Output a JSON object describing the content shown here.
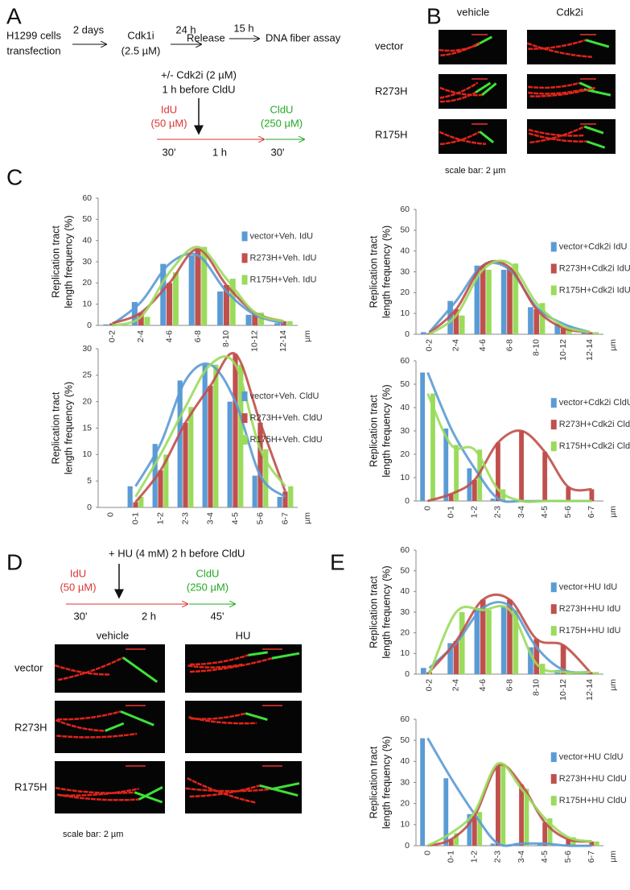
{
  "panel_labels": [
    "A",
    "B",
    "C",
    "D",
    "E"
  ],
  "panel_a": {
    "start": [
      "H1299 cells",
      "transfection"
    ],
    "arrow1": "2 days",
    "cdk1i": [
      "Cdk1i",
      "(2.5 µM)"
    ],
    "arrow2": "24 h",
    "release": "Release",
    "arrow3": "15 h",
    "assay": "DNA fiber assay",
    "treatment": [
      "+/- Cdk2i (2 µM)",
      "1 h before CldU"
    ],
    "idu": [
      "IdU",
      "(50 µM)"
    ],
    "cldu": [
      "CldU",
      "(250 µM)"
    ],
    "times": [
      "30'",
      "1 h",
      "30'"
    ]
  },
  "panel_b": {
    "columns": [
      "vehicle",
      "Cdk2i"
    ],
    "rows": [
      "vector",
      "R273H",
      "R175H"
    ],
    "scale": "scale bar: 2 µm"
  },
  "panel_d": {
    "treatment": "+ HU (4 mM) 2 h before CldU",
    "idu": [
      "IdU",
      "(50 µM)"
    ],
    "cldu": [
      "CldU",
      "(250 µM)"
    ],
    "times": [
      "30'",
      "2 h",
      "45'"
    ],
    "columns": [
      "vehicle",
      "HU"
    ],
    "rows": [
      "vector",
      "R273H",
      "R175H"
    ],
    "scale": "scale bar: 2 µm"
  },
  "chart_data": [
    {
      "type": "bar",
      "ylabel": [
        "Replication tract",
        "length frequency (%)"
      ],
      "unit": "µm",
      "fit_lines": true,
      "categories": [
        "0-2",
        "2-4",
        "4-6",
        "6-8",
        "8-10",
        "10-12",
        "12-14"
      ],
      "ylim": [
        0,
        60
      ],
      "yticks": [
        0,
        10,
        20,
        30,
        40,
        50,
        60
      ],
      "series": [
        {
          "name": "vector+Veh. IdU",
          "color": "#5b9bd5",
          "values": [
            0.5,
            11,
            29,
            33,
            16,
            5,
            1
          ]
        },
        {
          "name": "R273H+Veh. IdU",
          "color": "#c0504d",
          "values": [
            1,
            6,
            20,
            36,
            19,
            6,
            2
          ]
        },
        {
          "name": "R175H+Veh. IdU",
          "color": "#9bdb5b",
          "values": [
            0,
            4,
            25,
            37,
            22,
            6,
            2
          ]
        }
      ]
    },
    {
      "type": "bar",
      "ylabel": [
        "Replication tract",
        "length frequency (%)"
      ],
      "unit": "µm",
      "fit_lines": true,
      "categories": [
        "0-2",
        "2-4",
        "4-6",
        "6-8",
        "8-10",
        "10-12",
        "12-14"
      ],
      "ylim": [
        0,
        60
      ],
      "yticks": [
        0,
        10,
        20,
        30,
        40,
        50,
        60
      ],
      "series": [
        {
          "name": "vector+Cdk2i IdU",
          "color": "#5b9bd5",
          "values": [
            1,
            16,
            33,
            31,
            13,
            5,
            1
          ]
        },
        {
          "name": "R273H+Cdk2i IdU",
          "color": "#c0504d",
          "values": [
            0.5,
            12,
            33,
            32,
            12,
            3,
            1
          ]
        },
        {
          "name": "R175H+Cdk2i IdU",
          "color": "#9bdb5b",
          "values": [
            0,
            9,
            31,
            34,
            15,
            4,
            1
          ]
        }
      ]
    },
    {
      "type": "bar",
      "ylabel": [
        "Replication tract",
        "length frequency (%)"
      ],
      "unit": "µm",
      "fit_lines": true,
      "categories": [
        "0",
        "0-1",
        "1-2",
        "2-3",
        "3-4",
        "4-5",
        "5-6",
        "6-7"
      ],
      "ylim": [
        0,
        30
      ],
      "yticks": [
        0,
        5,
        10,
        15,
        20,
        25,
        30
      ],
      "series": [
        {
          "name": "vector+Veh. CldU",
          "color": "#5b9bd5",
          "values": [
            null,
            4,
            12,
            24,
            27,
            20,
            6,
            2
          ]
        },
        {
          "name": "R273H+Veh. CldU",
          "color": "#c0504d",
          "values": [
            null,
            1,
            7,
            16,
            23,
            29,
            16,
            3
          ]
        },
        {
          "name": "R175H+Veh. CldU",
          "color": "#9bdb5b",
          "values": [
            null,
            2,
            10,
            19,
            27,
            27,
            11,
            4
          ]
        }
      ]
    },
    {
      "type": "bar",
      "ylabel": [
        "Replication tract",
        "length frequency (%)"
      ],
      "unit": "µm",
      "fit_lines": true,
      "categories": [
        "0",
        "0-1",
        "1-2",
        "2-3",
        "3-4",
        "4-5",
        "5-6",
        "6-7"
      ],
      "ylim": [
        0,
        60
      ],
      "yticks": [
        0,
        10,
        20,
        30,
        40,
        50,
        60
      ],
      "series": [
        {
          "name": "vector+Cdk2i CldU",
          "color": "#5b9bd5",
          "values": [
            55,
            31,
            14,
            1,
            0,
            0,
            0,
            0
          ]
        },
        {
          "name": "R273H+Cdk2i CldU",
          "color": "#c0504d",
          "values": [
            0,
            3,
            9,
            25,
            30,
            21,
            6,
            5
          ]
        },
        {
          "name": "R175H+Cdk2i CldU",
          "color": "#9bdb5b",
          "values": [
            46,
            24,
            22,
            5,
            0,
            0,
            0,
            0
          ]
        }
      ]
    },
    {
      "type": "bar",
      "ylabel": [
        "Replication tract",
        "length frequency (%)"
      ],
      "unit": "µm",
      "fit_lines": true,
      "categories": [
        "0-2",
        "2-4",
        "4-6",
        "6-8",
        "8-10",
        "10-12",
        "12-14"
      ],
      "ylim": [
        0,
        60
      ],
      "yticks": [
        0,
        10,
        20,
        30,
        40,
        50,
        60
      ],
      "series": [
        {
          "name": "vector+HU IdU",
          "color": "#5b9bd5",
          "values": [
            3,
            15,
            32,
            33,
            13,
            2,
            1
          ]
        },
        {
          "name": "R273H+HU IdU",
          "color": "#c0504d",
          "values": [
            1,
            16,
            36,
            36,
            17,
            14,
            1
          ]
        },
        {
          "name": "R175H+HU IdU",
          "color": "#9bdb5b",
          "values": [
            0,
            30,
            31,
            31,
            5,
            1,
            1
          ]
        }
      ]
    },
    {
      "type": "bar",
      "ylabel": [
        "Replication tract",
        "length frequency (%)"
      ],
      "unit": "µm",
      "fit_lines": true,
      "categories": [
        "0",
        "0-1",
        "1-2",
        "2-3",
        "3-4",
        "4-5",
        "5-6",
        "6-7"
      ],
      "ylim": [
        0,
        60
      ],
      "yticks": [
        0,
        10,
        20,
        30,
        40,
        50,
        60
      ],
      "series": [
        {
          "name": "vector+HU CldU",
          "color": "#5b9bd5",
          "values": [
            51,
            32,
            15,
            1,
            1,
            1,
            0,
            0
          ]
        },
        {
          "name": "R273H+HU CldU",
          "color": "#c0504d",
          "values": [
            0,
            3,
            14,
            38,
            29,
            11,
            3,
            2
          ]
        },
        {
          "name": "R175H+HU CldU",
          "color": "#9bdb5b",
          "values": [
            0,
            6,
            16,
            39,
            27,
            13,
            4,
            2
          ]
        }
      ]
    }
  ]
}
